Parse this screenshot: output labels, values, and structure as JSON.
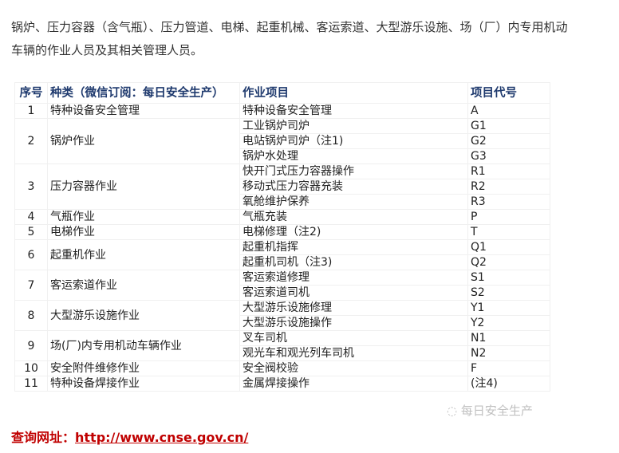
{
  "intro": "锅炉、压力容器（含气瓶）、压力管道、电梯、起重机械、客运索道、大型游乐设施、场（厂）内专用机动车辆的作业人员及其相关管理人员。",
  "table": {
    "headers": [
      "序号",
      "种类（微信订阅：每日安全生产）",
      "作业项目",
      "项目代号"
    ],
    "groups": [
      {
        "no": "1",
        "category": "特种设备安全管理",
        "items": [
          [
            "特种设备安全管理",
            "A"
          ]
        ]
      },
      {
        "no": "2",
        "category": "锅炉作业",
        "items": [
          [
            "工业锅炉司炉",
            "G1"
          ],
          [
            "电站锅炉司炉（注1)",
            "G2"
          ],
          [
            "锅炉水处理",
            "G3"
          ]
        ]
      },
      {
        "no": "3",
        "category": "压力容器作业",
        "items": [
          [
            "快开门式压力容器操作",
            "R1"
          ],
          [
            "移动式压力容器充装",
            "R2"
          ],
          [
            "氧舱维护保养",
            "R3"
          ]
        ]
      },
      {
        "no": "4",
        "category": "气瓶作业",
        "items": [
          [
            "气瓶充装",
            "P"
          ]
        ]
      },
      {
        "no": "5",
        "category": "电梯作业",
        "items": [
          [
            "电梯修理（注2)",
            "T"
          ]
        ]
      },
      {
        "no": "6",
        "category": "起重机作业",
        "items": [
          [
            "起重机指挥",
            "Q1"
          ],
          [
            "起重机司机（注3)",
            "Q2"
          ]
        ]
      },
      {
        "no": "7",
        "category": "客运索道作业",
        "items": [
          [
            "客运索道修理",
            "S1"
          ],
          [
            "客运索道司机",
            "S2"
          ]
        ]
      },
      {
        "no": "8",
        "category": "大型游乐设施作业",
        "items": [
          [
            "大型游乐设施修理",
            "Y1"
          ],
          [
            "大型游乐设施操作",
            "Y2"
          ]
        ]
      },
      {
        "no": "9",
        "category": "场(厂)内专用机动车辆作业",
        "items": [
          [
            "叉车司机",
            "N1"
          ],
          [
            "观光车和观光列车司机",
            "N2"
          ]
        ]
      },
      {
        "no": "10",
        "category": "安全附件维修作业",
        "items": [
          [
            "安全阀校验",
            "F"
          ]
        ]
      },
      {
        "no": "11",
        "category": "特种设备焊接作业",
        "items": [
          [
            "金属焊接操作",
            "(注4)"
          ]
        ]
      }
    ]
  },
  "watermark": "每日安全生产",
  "query": {
    "label": "查询网址：",
    "url": "http://www.cnse.gov.cn/"
  },
  "colors": {
    "header_text": "#1f3a6e",
    "link": "#c00000"
  }
}
